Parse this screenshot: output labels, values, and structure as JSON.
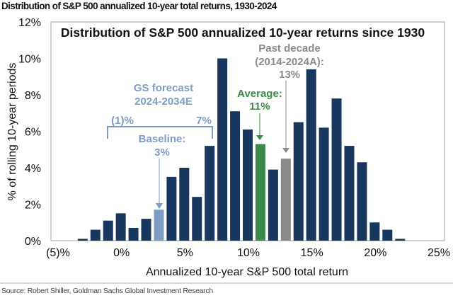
{
  "header": {
    "title": "Distribution of S&P 500 annualized 10-year total returns, 1930-2024"
  },
  "source": "Source: Robert Shiller, Goldman Sachs Global Investment Research",
  "chart_data": {
    "type": "bar",
    "title": "Distribution of S&P 500 annualized 10-year returns since 1930",
    "xlabel": "Annualized 10-year S&P 500 total return",
    "ylabel": "% of rolling 10-year periods",
    "x": [
      -3,
      -2,
      -1,
      0,
      1,
      2,
      3,
      4,
      5,
      6,
      7,
      8,
      9,
      10,
      11,
      12,
      13,
      14,
      15,
      16,
      17,
      18,
      19,
      20,
      21,
      22
    ],
    "values": [
      0.1,
      0.6,
      1.1,
      1.5,
      0.7,
      1.2,
      1.7,
      3.5,
      4.0,
      2.4,
      5.2,
      10.0,
      7.1,
      6.1,
      5.3,
      3.9,
      4.5,
      6.5,
      9.4,
      6.2,
      7.8,
      5.2,
      4.3,
      1.0,
      0.6,
      0.1
    ],
    "xlim": [
      -5.5,
      25.5
    ],
    "ylim": [
      0,
      12
    ],
    "x_ticks": [
      -5,
      0,
      5,
      10,
      15,
      20,
      25
    ],
    "x_tick_labels": [
      "(5)%",
      "0%",
      "5%",
      "10%",
      "15%",
      "20%",
      "25%"
    ],
    "y_ticks": [
      0,
      2,
      4,
      6,
      8,
      10,
      12
    ],
    "y_tick_labels": [
      "0%",
      "2%",
      "4%",
      "6%",
      "8%",
      "10%",
      "12%"
    ],
    "grid": false,
    "colors": {
      "default": "#17375e",
      "baseline": "#7f9cc4",
      "average": "#3b8a47",
      "past_decade": "#8a8a8a"
    },
    "highlights": {
      "baseline": 3,
      "average": 11,
      "past_decade": 13
    },
    "annotations": {
      "forecast_line1": "GS forecast",
      "forecast_line2": "2024-2034E",
      "range_low": "(1)%",
      "range_high": "7%",
      "baseline_line1": "Baseline:",
      "baseline_line2": "3%",
      "average_line1": "Average:",
      "average_line2": "11%",
      "past_line1": "Past decade",
      "past_line2": "(2014-2024A):",
      "past_line3": "13%"
    }
  }
}
